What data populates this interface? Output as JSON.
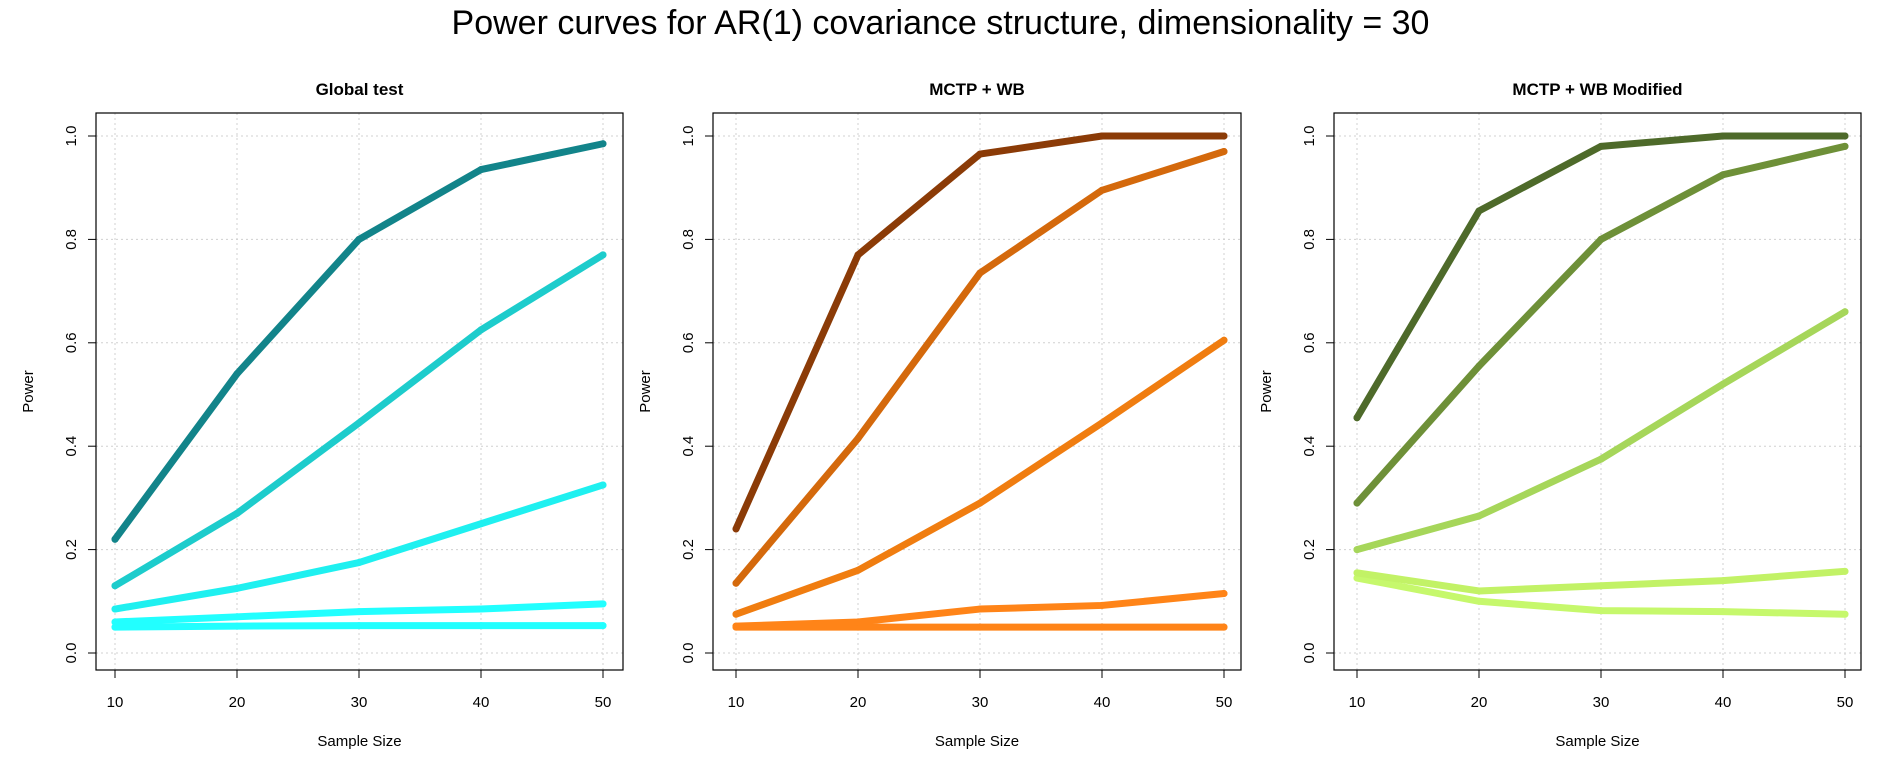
{
  "figure": {
    "title": "Power curves for AR(1) covariance structure, dimensionality = 30"
  },
  "chart_data": [
    {
      "type": "line",
      "title": "Global test",
      "xlabel": "Sample Size",
      "ylabel": "Power",
      "x": [
        10,
        20,
        30,
        40,
        50
      ],
      "xlim": [
        10,
        50
      ],
      "ylim": [
        0,
        1
      ],
      "xticks": [
        "10",
        "20",
        "30",
        "40",
        "50"
      ],
      "yticks": [
        "0.0",
        "0.2",
        "0.4",
        "0.6",
        "0.8",
        "1.0"
      ],
      "grid": true,
      "series": [
        {
          "color": "#12848a",
          "values": [
            0.22,
            0.54,
            0.8,
            0.935,
            0.985
          ]
        },
        {
          "color": "#1dcccc",
          "values": [
            0.13,
            0.27,
            0.445,
            0.625,
            0.77
          ]
        },
        {
          "color": "#1ff0f0",
          "values": [
            0.085,
            0.125,
            0.175,
            0.25,
            0.325
          ]
        },
        {
          "color": "#22ffff",
          "values": [
            0.06,
            0.07,
            0.08,
            0.085,
            0.095
          ]
        },
        {
          "color": "#22ffff",
          "values": [
            0.05,
            0.052,
            0.053,
            0.053,
            0.053
          ]
        }
      ]
    },
    {
      "type": "line",
      "title": "MCTP + WB",
      "xlabel": "Sample Size",
      "ylabel": "Power",
      "x": [
        10,
        20,
        30,
        40,
        50
      ],
      "xlim": [
        10,
        50
      ],
      "ylim": [
        0,
        1
      ],
      "xticks": [
        "10",
        "20",
        "30",
        "40",
        "50"
      ],
      "yticks": [
        "0.0",
        "0.2",
        "0.4",
        "0.6",
        "0.8",
        "1.0"
      ],
      "grid": true,
      "series": [
        {
          "color": "#8b3b07",
          "values": [
            0.24,
            0.77,
            0.965,
            1.0,
            1.0
          ]
        },
        {
          "color": "#d4690c",
          "values": [
            0.135,
            0.415,
            0.735,
            0.895,
            0.97
          ]
        },
        {
          "color": "#f07d10",
          "values": [
            0.075,
            0.16,
            0.29,
            0.445,
            0.605
          ]
        },
        {
          "color": "#ff8418",
          "values": [
            0.052,
            0.06,
            0.085,
            0.092,
            0.115
          ]
        },
        {
          "color": "#ff8418",
          "values": [
            0.05,
            0.05,
            0.05,
            0.05,
            0.05
          ]
        }
      ]
    },
    {
      "type": "line",
      "title": "MCTP + WB Modified",
      "xlabel": "Sample Size",
      "ylabel": "Power",
      "x": [
        10,
        20,
        30,
        40,
        50
      ],
      "xlim": [
        10,
        50
      ],
      "ylim": [
        0,
        1
      ],
      "xticks": [
        "10",
        "20",
        "30",
        "40",
        "50"
      ],
      "yticks": [
        "0.0",
        "0.2",
        "0.4",
        "0.6",
        "0.8",
        "1.0"
      ],
      "grid": true,
      "series": [
        {
          "color": "#4e6a2a",
          "values": [
            0.455,
            0.855,
            0.98,
            1.0,
            1.0
          ]
        },
        {
          "color": "#6e9038",
          "values": [
            0.29,
            0.555,
            0.8,
            0.925,
            0.98
          ]
        },
        {
          "color": "#a6d65a",
          "values": [
            0.2,
            0.265,
            0.375,
            0.52,
            0.66
          ]
        },
        {
          "color": "#c2f266",
          "values": [
            0.155,
            0.12,
            0.13,
            0.14,
            0.158
          ]
        },
        {
          "color": "#c6f86c",
          "values": [
            0.145,
            0.1,
            0.082,
            0.08,
            0.075
          ]
        }
      ]
    }
  ]
}
